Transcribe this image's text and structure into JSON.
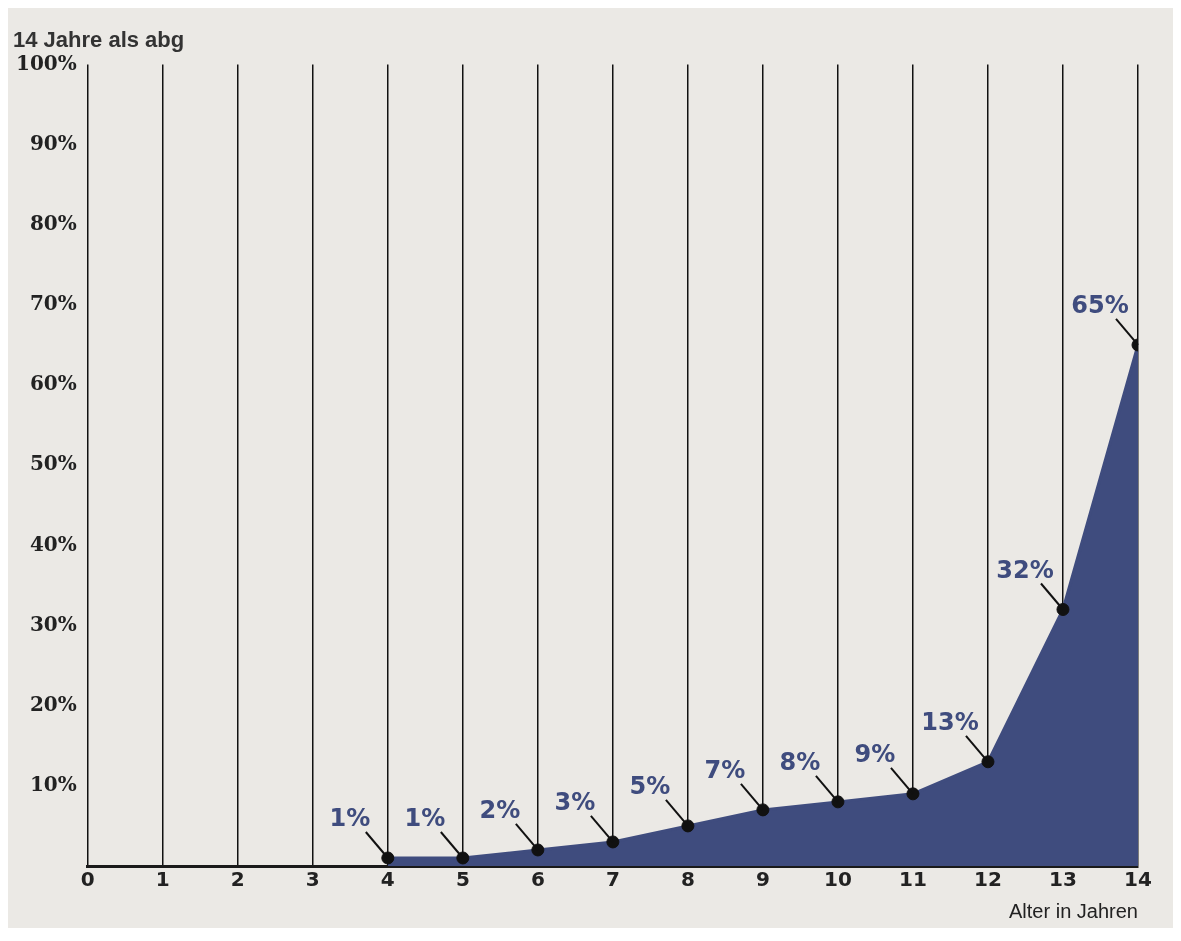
{
  "chart_data": {
    "type": "area",
    "title": "14 Jahre als abg",
    "xlabel": "Alter in Jahren",
    "x": [
      4,
      5,
      6,
      7,
      8,
      9,
      10,
      11,
      12,
      13,
      14
    ],
    "series": [
      {
        "color": "#3f4c7e",
        "values": [
          1,
          1,
          2,
          3,
          5,
          7,
          8,
          9,
          13,
          32,
          65
        ],
        "value_labels": [
          "1%",
          "1%",
          "2%",
          "3%",
          "5%",
          "7%",
          "8%",
          "9%",
          "13%",
          "32%",
          "65%"
        ]
      }
    ],
    "xlim": [
      0,
      14
    ],
    "xticks": [
      0,
      1,
      2,
      3,
      4,
      5,
      6,
      7,
      8,
      9,
      10,
      11,
      12,
      13,
      14
    ],
    "ylim": [
      0,
      100
    ],
    "yticks": [
      {
        "value": 10,
        "label": "10%"
      },
      {
        "value": 20,
        "label": "20%"
      },
      {
        "value": 30,
        "label": "30%"
      },
      {
        "value": 40,
        "label": "40%"
      },
      {
        "value": 50,
        "label": "50%"
      },
      {
        "value": 60,
        "label": "60%"
      },
      {
        "value": 70,
        "label": "70%"
      },
      {
        "value": 80,
        "label": "80%"
      },
      {
        "value": 90,
        "label": "90%"
      },
      {
        "value": 100,
        "label": "100%"
      }
    ],
    "grid": "x",
    "marker": "circle",
    "legend": false
  }
}
